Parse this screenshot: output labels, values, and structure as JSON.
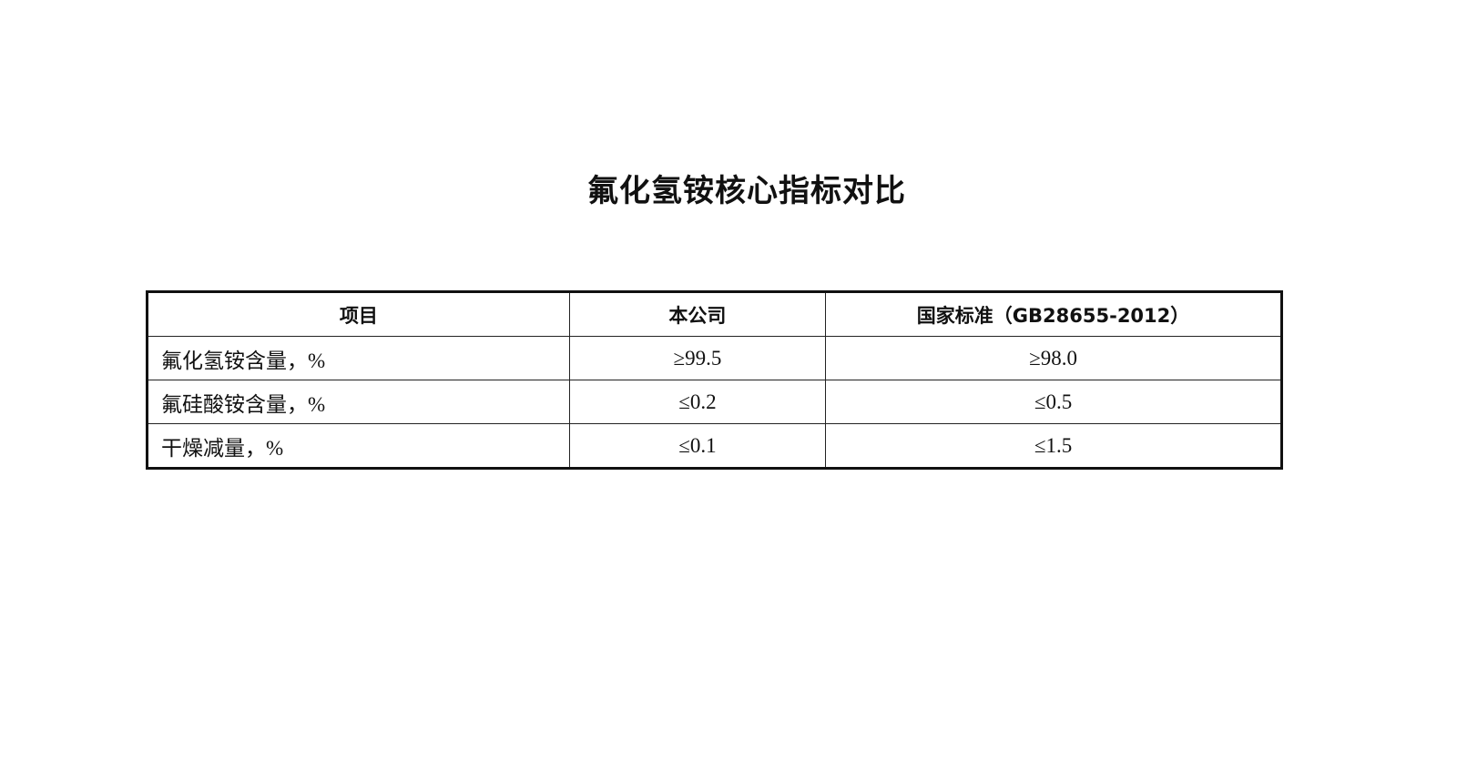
{
  "title": "氟化氢铵核心指标对比",
  "table": {
    "headers": [
      "项目",
      "本公司",
      "国家标准（GB28655-2012）"
    ],
    "rows": [
      [
        "氟化氢铵含量，%",
        "≥99.5",
        "≥98.0"
      ],
      [
        "氟硅酸铵含量，%",
        "≤0.2",
        "≤0.5"
      ],
      [
        "干燥减量，%",
        "≤0.1",
        "≤1.5"
      ]
    ]
  }
}
